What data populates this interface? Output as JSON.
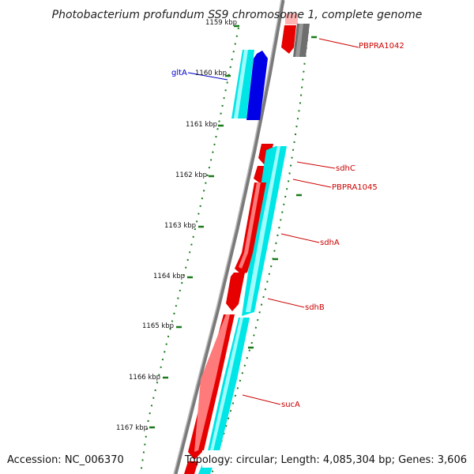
{
  "title": "Photobacterium profundum SS9 chromosome 1, complete genome",
  "footer": {
    "accession": "Accession: NC_006370",
    "summary": "Topology: circular; Length: 4,085,304 bp; Genes: 3,606"
  },
  "colors": {
    "backbone": "#7a7a7a",
    "forward_gene": "#e60000",
    "forward_gene_highlight": "#ff7a7a",
    "blue_gene": "#0000e6",
    "cyan_track": "#00e5e5",
    "cyan_highlight": "#9ffcfc",
    "gray_gene": "#6e6e6e",
    "tick": "#1a7a1a",
    "label_red": "#cc0000",
    "label_blue": "#0000cc"
  },
  "ticks": [
    {
      "label": "1159 kbp"
    },
    {
      "label": "1160 kbp"
    },
    {
      "label": "1161 kbp"
    },
    {
      "label": "1162 kbp"
    },
    {
      "label": "1163 kbp"
    },
    {
      "label": "1164 kbp"
    },
    {
      "label": "1165 kbp"
    },
    {
      "label": "1166 kbp"
    },
    {
      "label": "1167 kbp"
    }
  ],
  "genes": [
    {
      "name": "PBPRA1042"
    },
    {
      "name": "gltA"
    },
    {
      "name": "sdhC"
    },
    {
      "name": "PBPRA1045"
    },
    {
      "name": "sdhA"
    },
    {
      "name": "sdhB"
    },
    {
      "name": "sucA"
    }
  ]
}
